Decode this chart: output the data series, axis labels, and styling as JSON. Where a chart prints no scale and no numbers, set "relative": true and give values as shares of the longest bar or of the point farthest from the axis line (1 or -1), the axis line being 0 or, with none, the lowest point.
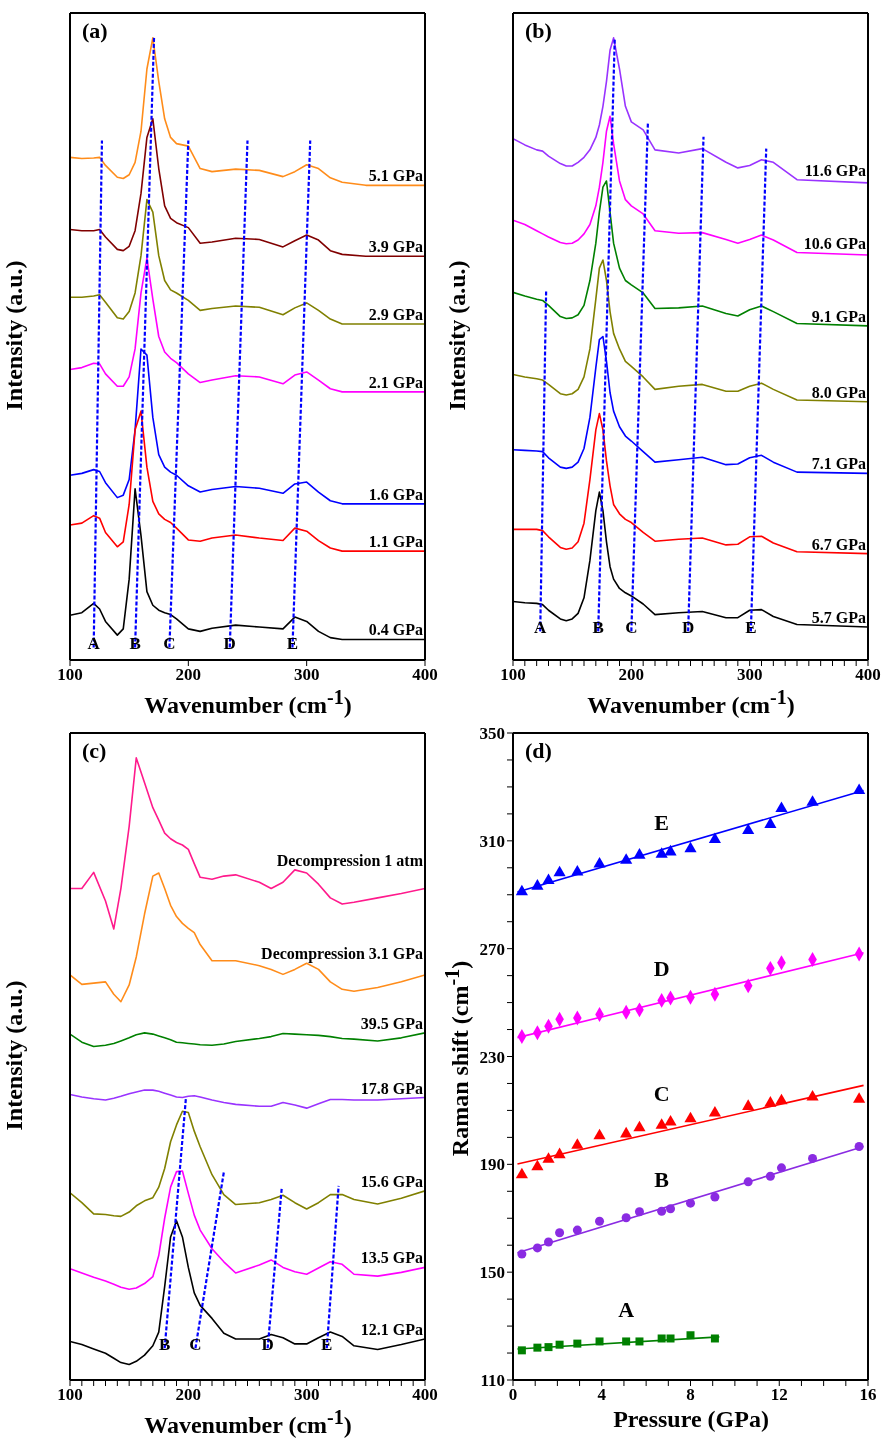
{
  "chart_data": [
    {
      "type": "line",
      "relative": true,
      "marker": "none",
      "title": "(a)",
      "xlabel": "Wavenumber (cm$^{-1}$)",
      "ylabel": "Intensity (a.u.)",
      "xlim": [
        100,
        400
      ],
      "xticks": [
        100,
        200,
        300,
        400
      ],
      "x": [
        100,
        110,
        120,
        125,
        130,
        140,
        145,
        150,
        155,
        160,
        165,
        170,
        175,
        180,
        185,
        190,
        200,
        210,
        220,
        240,
        260,
        280,
        290,
        300,
        310,
        320,
        330,
        350,
        400
      ],
      "series": [
        {
          "name": "5.1 GPa",
          "color": "#ff8c1a",
          "values": [
            0.808,
            0.806,
            0.807,
            0.808,
            0.795,
            0.776,
            0.774,
            0.78,
            0.8,
            0.85,
            0.95,
            1.0,
            0.93,
            0.87,
            0.84,
            0.83,
            0.826,
            0.79,
            0.785,
            0.789,
            0.787,
            0.777,
            0.785,
            0.796,
            0.79,
            0.775,
            0.768,
            0.763,
            0.763
          ]
        },
        {
          "name": "3.9 GPa",
          "color": "#800000",
          "values": [
            0.692,
            0.69,
            0.69,
            0.692,
            0.68,
            0.66,
            0.658,
            0.665,
            0.69,
            0.75,
            0.84,
            0.87,
            0.79,
            0.73,
            0.71,
            0.703,
            0.695,
            0.67,
            0.672,
            0.678,
            0.676,
            0.664,
            0.674,
            0.683,
            0.675,
            0.658,
            0.652,
            0.649,
            0.649
          ]
        },
        {
          "name": "2.9 GPa",
          "color": "#808000",
          "values": [
            0.583,
            0.583,
            0.585,
            0.587,
            0.575,
            0.55,
            0.548,
            0.56,
            0.59,
            0.65,
            0.74,
            0.72,
            0.65,
            0.61,
            0.595,
            0.59,
            0.578,
            0.562,
            0.565,
            0.569,
            0.567,
            0.555,
            0.566,
            0.574,
            0.562,
            0.548,
            0.54,
            0.54,
            0.54
          ]
        },
        {
          "name": "2.1 GPa",
          "color": "#ff00ff",
          "values": [
            0.467,
            0.47,
            0.477,
            0.476,
            0.46,
            0.44,
            0.44,
            0.455,
            0.5,
            0.59,
            0.646,
            0.58,
            0.52,
            0.495,
            0.485,
            0.478,
            0.46,
            0.446,
            0.45,
            0.457,
            0.455,
            0.444,
            0.458,
            0.463,
            0.45,
            0.436,
            0.431,
            0.431,
            0.431
          ]
        },
        {
          "name": "1.6 GPa",
          "color": "#0000ff",
          "values": [
            0.297,
            0.3,
            0.306,
            0.303,
            0.285,
            0.261,
            0.265,
            0.29,
            0.37,
            0.5,
            0.49,
            0.39,
            0.33,
            0.31,
            0.302,
            0.297,
            0.28,
            0.27,
            0.274,
            0.279,
            0.276,
            0.268,
            0.283,
            0.286,
            0.27,
            0.256,
            0.251,
            0.251,
            0.251
          ]
        },
        {
          "name": "1.1 GPa",
          "color": "#ff0000",
          "values": [
            0.217,
            0.22,
            0.232,
            0.228,
            0.205,
            0.182,
            0.19,
            0.25,
            0.37,
            0.4,
            0.31,
            0.255,
            0.235,
            0.226,
            0.221,
            0.212,
            0.193,
            0.191,
            0.196,
            0.201,
            0.196,
            0.192,
            0.212,
            0.207,
            0.192,
            0.18,
            0.175,
            0.175,
            0.175
          ]
        },
        {
          "name": "0.4 GPa",
          "color": "#000000",
          "values": [
            0.072,
            0.076,
            0.091,
            0.082,
            0.062,
            0.04,
            0.05,
            0.13,
            0.275,
            0.2,
            0.11,
            0.088,
            0.08,
            0.076,
            0.073,
            0.066,
            0.05,
            0.046,
            0.051,
            0.056,
            0.053,
            0.05,
            0.069,
            0.062,
            0.046,
            0.036,
            0.033,
            0.033,
            0.033
          ]
        },
        {
          "type": "line",
          "color": "#0000ff",
          "line_style": "dashed",
          "x": [
            120,
            127
          ],
          "values": [
            0.02,
            0.835
          ]
        },
        {
          "type": "line",
          "color": "#0000ff",
          "line_style": "dashed",
          "x": [
            155,
            171
          ],
          "values": [
            0.02,
            1.0
          ]
        },
        {
          "type": "line",
          "color": "#0000ff",
          "line_style": "dashed",
          "x": [
            184,
            200
          ],
          "values": [
            0.02,
            0.835
          ]
        },
        {
          "type": "line",
          "color": "#0000ff",
          "line_style": "dashed",
          "x": [
            235,
            250
          ],
          "values": [
            0.02,
            0.835
          ]
        },
        {
          "type": "line",
          "color": "#0000ff",
          "line_style": "dashed",
          "x": [
            288,
            303
          ],
          "values": [
            0.02,
            0.835
          ]
        }
      ],
      "annotations": [
        {
          "text": "A",
          "x": 120,
          "y": 0.02
        },
        {
          "text": "B",
          "x": 155,
          "y": 0.02
        },
        {
          "text": "C",
          "x": 184,
          "y": 0.02
        },
        {
          "text": "D",
          "x": 235,
          "y": 0.02
        },
        {
          "text": "E",
          "x": 288,
          "y": 0.02
        }
      ]
    },
    {
      "type": "line",
      "relative": true,
      "marker": "none",
      "title": "(b)",
      "xlabel": "Wavenumber (cm$^{-1}$)",
      "ylabel": "Intensity (a.u.)",
      "xlim": [
        100,
        400
      ],
      "xticks": [
        100,
        {
          "value": 110,
          "label": null
        },
        {
          "value": 120,
          "label": null
        },
        {
          "value": 130,
          "label": null
        },
        {
          "value": 140,
          "label": null
        },
        {
          "value": 150,
          "label": null
        },
        {
          "value": 160,
          "label": null
        },
        {
          "value": 170,
          "label": null
        },
        {
          "value": 180,
          "label": null
        },
        {
          "value": 190,
          "label": null
        },
        200,
        {
          "value": 210,
          "label": null
        },
        {
          "value": 220,
          "label": null
        },
        {
          "value": 230,
          "label": null
        },
        {
          "value": 240,
          "label": null
        },
        {
          "value": 250,
          "label": null
        },
        {
          "value": 260,
          "label": null
        },
        {
          "value": 270,
          "label": null
        },
        {
          "value": 280,
          "label": null
        },
        {
          "value": 290,
          "label": null
        },
        300,
        {
          "value": 310,
          "label": null
        },
        {
          "value": 320,
          "label": null
        },
        {
          "value": 330,
          "label": null
        },
        {
          "value": 340,
          "label": null
        },
        {
          "value": 350,
          "label": null
        },
        {
          "value": 360,
          "label": null
        },
        {
          "value": 370,
          "label": null
        },
        {
          "value": 380,
          "label": null
        },
        {
          "value": 390,
          "label": null
        },
        400
      ],
      "x": [
        100,
        110,
        120,
        125,
        130,
        140,
        145,
        150,
        155,
        160,
        165,
        170,
        173,
        176,
        179,
        182,
        185,
        190,
        195,
        200,
        210,
        220,
        240,
        260,
        280,
        290,
        300,
        310,
        320,
        340,
        400
      ],
      "series": [
        {
          "name": "11.6 GPa",
          "color": "#9933ff",
          "values": [
            0.838,
            0.828,
            0.82,
            0.818,
            0.81,
            0.798,
            0.794,
            0.794,
            0.8,
            0.808,
            0.82,
            0.84,
            0.86,
            0.89,
            0.93,
            0.98,
            1.0,
            0.95,
            0.89,
            0.865,
            0.852,
            0.82,
            0.815,
            0.822,
            0.8,
            0.791,
            0.795,
            0.804,
            0.8,
            0.772,
            0.767
          ]
        },
        {
          "name": "10.6 GPa",
          "color": "#ff00ff",
          "values": [
            0.707,
            0.7,
            0.69,
            0.685,
            0.68,
            0.671,
            0.669,
            0.67,
            0.675,
            0.685,
            0.7,
            0.73,
            0.76,
            0.8,
            0.85,
            0.874,
            0.83,
            0.77,
            0.74,
            0.73,
            0.717,
            0.69,
            0.686,
            0.687,
            0.676,
            0.67,
            0.676,
            0.683,
            0.675,
            0.655,
            0.651
          ]
        },
        {
          "name": "9.1 GPa",
          "color": "#008000",
          "values": [
            0.591,
            0.585,
            0.58,
            0.578,
            0.57,
            0.552,
            0.549,
            0.55,
            0.555,
            0.57,
            0.61,
            0.67,
            0.72,
            0.76,
            0.77,
            0.72,
            0.67,
            0.63,
            0.61,
            0.603,
            0.59,
            0.565,
            0.566,
            0.569,
            0.557,
            0.553,
            0.563,
            0.569,
            0.56,
            0.541,
            0.537
          ]
        },
        {
          "name": "8.0 GPa",
          "color": "#808000",
          "values": [
            0.459,
            0.455,
            0.452,
            0.45,
            0.443,
            0.428,
            0.426,
            0.428,
            0.435,
            0.455,
            0.5,
            0.58,
            0.63,
            0.643,
            0.61,
            0.56,
            0.525,
            0.5,
            0.48,
            0.472,
            0.455,
            0.435,
            0.44,
            0.443,
            0.432,
            0.432,
            0.44,
            0.445,
            0.435,
            0.418,
            0.415
          ]
        },
        {
          "name": "7.1 GPa",
          "color": "#0000ff",
          "values": [
            0.338,
            0.337,
            0.336,
            0.335,
            0.325,
            0.31,
            0.308,
            0.31,
            0.318,
            0.34,
            0.39,
            0.47,
            0.515,
            0.52,
            0.48,
            0.43,
            0.4,
            0.375,
            0.36,
            0.352,
            0.335,
            0.318,
            0.322,
            0.326,
            0.314,
            0.315,
            0.325,
            0.329,
            0.318,
            0.302,
            0.3
          ]
        },
        {
          "name": "6.7 GPa",
          "color": "#ff0000",
          "values": [
            0.21,
            0.21,
            0.21,
            0.208,
            0.198,
            0.181,
            0.178,
            0.18,
            0.19,
            0.22,
            0.29,
            0.37,
            0.396,
            0.37,
            0.32,
            0.28,
            0.25,
            0.235,
            0.226,
            0.221,
            0.205,
            0.191,
            0.194,
            0.196,
            0.185,
            0.186,
            0.198,
            0.199,
            0.188,
            0.174,
            0.171
          ]
        },
        {
          "name": "5.7 GPa",
          "color": "#000000",
          "values": [
            0.094,
            0.092,
            0.091,
            0.089,
            0.08,
            0.066,
            0.063,
            0.066,
            0.075,
            0.1,
            0.16,
            0.24,
            0.27,
            0.24,
            0.19,
            0.15,
            0.13,
            0.115,
            0.108,
            0.103,
            0.09,
            0.073,
            0.076,
            0.078,
            0.068,
            0.068,
            0.08,
            0.081,
            0.07,
            0.057,
            0.053
          ]
        },
        {
          "type": "line",
          "color": "#0000ff",
          "line_style": "dashed",
          "x": [
            123,
            128
          ],
          "values": [
            0.046,
            0.594
          ]
        },
        {
          "type": "line",
          "color": "#0000ff",
          "line_style": "dashed",
          "x": [
            172,
            186
          ],
          "values": [
            0.046,
            1.0
          ]
        },
        {
          "type": "line",
          "color": "#0000ff",
          "line_style": "dashed",
          "x": [
            200,
            214
          ],
          "values": [
            0.046,
            0.863
          ]
        },
        {
          "type": "line",
          "color": "#0000ff",
          "line_style": "dashed",
          "x": [
            248,
            261
          ],
          "values": [
            0.046,
            0.841
          ]
        },
        {
          "type": "line",
          "color": "#0000ff",
          "line_style": "dashed",
          "x": [
            301,
            314
          ],
          "values": [
            0.046,
            0.822
          ]
        }
      ],
      "annotations": [
        {
          "text": "A",
          "x": 123,
          "y": 0.046
        },
        {
          "text": "B",
          "x": 172,
          "y": 0.046
        },
        {
          "text": "C",
          "x": 200,
          "y": 0.046
        },
        {
          "text": "D",
          "x": 248,
          "y": 0.046
        },
        {
          "text": "E",
          "x": 301,
          "y": 0.046
        }
      ]
    },
    {
      "type": "line",
      "relative": true,
      "marker": "none",
      "title": "(c)",
      "xlabel": "Wavenumber (cm$^{-1}$)",
      "ylabel": "Intensity (a.u.)",
      "xlim": [
        100,
        400
      ],
      "xticks": [
        100,
        {
          "value": 110,
          "label": null
        },
        {
          "value": 120,
          "label": null
        },
        {
          "value": 130,
          "label": null
        },
        {
          "value": 140,
          "label": null
        },
        {
          "value": 150,
          "label": null
        },
        {
          "value": 160,
          "label": null
        },
        {
          "value": 170,
          "label": null
        },
        {
          "value": 180,
          "label": null
        },
        {
          "value": 190,
          "label": null
        },
        200,
        {
          "value": 210,
          "label": null
        },
        {
          "value": 220,
          "label": null
        },
        {
          "value": 230,
          "label": null
        },
        {
          "value": 240,
          "label": null
        },
        {
          "value": 250,
          "label": null
        },
        {
          "value": 260,
          "label": null
        },
        {
          "value": 270,
          "label": null
        },
        {
          "value": 280,
          "label": null
        },
        {
          "value": 290,
          "label": null
        },
        300,
        {
          "value": 310,
          "label": null
        },
        {
          "value": 320,
          "label": null
        },
        {
          "value": 330,
          "label": null
        },
        {
          "value": 340,
          "label": null
        },
        {
          "value": 350,
          "label": null
        },
        {
          "value": 360,
          "label": null
        },
        {
          "value": 370,
          "label": null
        },
        {
          "value": 380,
          "label": null
        },
        {
          "value": 390,
          "label": null
        },
        400
      ],
      "x": [
        100,
        110,
        120,
        130,
        137,
        143,
        150,
        156,
        163,
        170,
        175,
        180,
        185,
        190,
        195,
        200,
        205,
        210,
        220,
        230,
        240,
        260,
        270,
        280,
        290,
        300,
        310,
        320,
        330,
        340,
        360,
        380,
        400
      ],
      "series": [
        {
          "name": "Decompression 1 atm",
          "color": "#ff1a8c",
          "values": [
            0.79,
            0.79,
            0.816,
            0.77,
            0.725,
            0.79,
            0.89,
            1.0,
            0.96,
            0.92,
            0.9,
            0.879,
            0.87,
            0.864,
            0.86,
            0.853,
            0.83,
            0.808,
            0.805,
            0.81,
            0.812,
            0.8,
            0.79,
            0.8,
            0.82,
            0.815,
            0.797,
            0.775,
            0.765,
            0.768,
            0.775,
            0.782,
            0.79
          ]
        },
        {
          "name": "Decompression 3.1 GPa",
          "color": "#ff8c1a",
          "values": [
            0.651,
            0.636,
            0.638,
            0.64,
            0.62,
            0.608,
            0.635,
            0.68,
            0.749,
            0.81,
            0.815,
            0.79,
            0.763,
            0.745,
            0.734,
            0.726,
            0.719,
            0.7,
            0.674,
            0.674,
            0.674,
            0.666,
            0.66,
            0.652,
            0.66,
            0.67,
            0.66,
            0.64,
            0.628,
            0.625,
            0.631,
            0.64,
            0.651
          ]
        },
        {
          "name": "39.5 GPa",
          "color": "#008000",
          "values": [
            0.556,
            0.543,
            0.536,
            0.538,
            0.541,
            0.545,
            0.55,
            0.555,
            0.558,
            0.556,
            0.553,
            0.55,
            0.547,
            0.543,
            0.542,
            0.541,
            0.54,
            0.539,
            0.538,
            0.54,
            0.544,
            0.549,
            0.552,
            0.557,
            0.556,
            0.555,
            0.554,
            0.552,
            0.549,
            0.548,
            0.545,
            0.55,
            0.558
          ]
        },
        {
          "name": "17.8 GPa",
          "color": "#9933ff",
          "values": [
            0.459,
            0.455,
            0.452,
            0.45,
            0.453,
            0.456,
            0.46,
            0.463,
            0.466,
            0.466,
            0.464,
            0.461,
            0.458,
            0.455,
            0.454,
            0.456,
            0.457,
            0.455,
            0.45,
            0.446,
            0.443,
            0.44,
            0.44,
            0.446,
            0.442,
            0.437,
            0.444,
            0.451,
            0.451,
            0.45,
            0.45,
            0.452,
            0.454
          ]
        },
        {
          "name": "15.6 GPa",
          "color": "#808000",
          "values": [
            0.301,
            0.285,
            0.267,
            0.266,
            0.264,
            0.263,
            0.27,
            0.28,
            0.288,
            0.293,
            0.31,
            0.34,
            0.383,
            0.41,
            0.432,
            0.43,
            0.4,
            0.375,
            0.33,
            0.298,
            0.282,
            0.285,
            0.29,
            0.297,
            0.285,
            0.275,
            0.285,
            0.298,
            0.298,
            0.29,
            0.283,
            0.292,
            0.304
          ]
        },
        {
          "name": "13.5 GPa",
          "color": "#ff00ff",
          "values": [
            0.179,
            0.172,
            0.165,
            0.159,
            0.154,
            0.149,
            0.146,
            0.148,
            0.155,
            0.166,
            0.2,
            0.26,
            0.31,
            0.335,
            0.336,
            0.3,
            0.265,
            0.241,
            0.211,
            0.19,
            0.172,
            0.185,
            0.193,
            0.181,
            0.174,
            0.17,
            0.18,
            0.19,
            0.186,
            0.17,
            0.167,
            0.173,
            0.181
          ]
        },
        {
          "name": "12.1 GPa",
          "color": "#000000",
          "values": [
            0.062,
            0.057,
            0.05,
            0.043,
            0.035,
            0.028,
            0.025,
            0.03,
            0.04,
            0.055,
            0.077,
            0.15,
            0.23,
            0.256,
            0.23,
            0.181,
            0.14,
            0.12,
            0.099,
            0.075,
            0.066,
            0.066,
            0.073,
            0.068,
            0.058,
            0.058,
            0.068,
            0.077,
            0.07,
            0.055,
            0.049,
            0.057,
            0.066
          ]
        },
        {
          "type": "line",
          "color": "#0000ff",
          "line_style": "dashed",
          "x": [
            180,
            198
          ],
          "values": [
            0.051,
            0.454
          ]
        },
        {
          "type": "line",
          "color": "#0000ff",
          "line_style": "dashed",
          "x": [
            206,
            230
          ],
          "values": [
            0.051,
            0.334
          ]
        },
        {
          "type": "line",
          "color": "#0000ff",
          "line_style": "dashed",
          "x": [
            267,
            279
          ],
          "values": [
            0.051,
            0.31
          ]
        },
        {
          "type": "line",
          "color": "#0000ff",
          "line_style": "dashed",
          "x": [
            317,
            327
          ],
          "values": [
            0.051,
            0.312
          ]
        }
      ],
      "annotations": [
        {
          "text": "B",
          "x": 180,
          "y": 0.051
        },
        {
          "text": "C",
          "x": 206,
          "y": 0.051
        },
        {
          "text": "D",
          "x": 267,
          "y": 0.051
        },
        {
          "text": "E",
          "x": 317,
          "y": 0.051
        }
      ]
    },
    {
      "type": "scatter",
      "title": "(d)",
      "xlabel": "Pressure (GPa)",
      "ylabel": "Raman shift (cm$^{-1}$)",
      "xlim": [
        0,
        16
      ],
      "ylim": [
        110,
        350
      ],
      "xticks": [
        0,
        {
          "value": 1,
          "label": null
        },
        {
          "value": 2,
          "label": null
        },
        {
          "value": 3,
          "label": null
        },
        4,
        {
          "value": 5,
          "label": null
        },
        {
          "value": 6,
          "label": null
        },
        {
          "value": 7,
          "label": null
        },
        8,
        {
          "value": 9,
          "label": null
        },
        {
          "value": 10,
          "label": null
        },
        {
          "value": 11,
          "label": null
        },
        12,
        {
          "value": 13,
          "label": null
        },
        {
          "value": 14,
          "label": null
        },
        {
          "value": 15,
          "label": null
        },
        16
      ],
      "yticks": [
        110,
        {
          "value": 120,
          "label": null
        },
        {
          "value": 130,
          "label": null
        },
        {
          "value": 140,
          "label": null
        },
        150,
        {
          "value": 160,
          "label": null
        },
        {
          "value": 170,
          "label": null
        },
        {
          "value": 180,
          "label": null
        },
        190,
        {
          "value": 200,
          "label": null
        },
        {
          "value": 210,
          "label": null
        },
        {
          "value": 220,
          "label": null
        },
        230,
        {
          "value": 240,
          "label": null
        },
        {
          "value": 250,
          "label": null
        },
        {
          "value": 260,
          "label": null
        },
        270,
        {
          "value": 280,
          "label": null
        },
        {
          "value": 290,
          "label": null
        },
        {
          "value": 300,
          "label": null
        },
        310,
        {
          "value": 320,
          "label": null
        },
        {
          "value": 330,
          "label": null
        },
        {
          "value": 340,
          "label": null
        },
        350
      ],
      "x": [
        0.4,
        1.1,
        1.6,
        2.1,
        2.9,
        3.9,
        5.1,
        5.7,
        6.7,
        7.1,
        8.0,
        9.1,
        10.6,
        11.6,
        12.1,
        13.5,
        15.6
      ],
      "series": [
        {
          "name": "E",
          "color": "#0000ff",
          "marker": "triangle",
          "values": [
            291.1,
            293.2,
            295.3,
            298.2,
            298.4,
            301.4,
            302.8,
            304.7,
            305.0,
            305.9,
            307.1,
            310.5,
            313.8,
            316.1,
            322.0,
            324.3,
            328.7
          ]
        },
        {
          "name": "D",
          "color": "#ff00ff",
          "marker": "diamond",
          "values": [
            237.4,
            238.8,
            241.2,
            243.8,
            244.3,
            245.6,
            246.4,
            247.3,
            250.8,
            251.7,
            252.0,
            253.1,
            256.2,
            262.7,
            264.8,
            266.0,
            268.0
          ]
        },
        {
          "name": "C",
          "color": "#ff0000",
          "marker": "triangle",
          "values": [
            186.1,
            189.1,
            191.9,
            193.6,
            197.1,
            200.6,
            201.3,
            203.6,
            204.5,
            205.7,
            206.9,
            209.0,
            211.5,
            212.7,
            213.6,
            215.0,
            214.1
          ]
        },
        {
          "name": "B",
          "color": "#8a2be2",
          "marker": "circle",
          "values": [
            156.7,
            159.0,
            161.2,
            164.6,
            165.6,
            168.9,
            170.2,
            172.4,
            172.6,
            173.5,
            175.6,
            177.9,
            183.5,
            185.6,
            188.7,
            192.2,
            196.6
          ]
        },
        {
          "name": "A",
          "color": "#008000",
          "marker": "square",
          "x": [
            0.4,
            1.1,
            1.6,
            2.1,
            2.9,
            3.9,
            5.1,
            5.7,
            6.7,
            7.1,
            8.0,
            9.1
          ],
          "values": [
            121.0,
            122.0,
            122.2,
            123.1,
            123.5,
            124.3,
            124.3,
            124.3,
            125.4,
            125.4,
            126.6,
            125.4
          ]
        },
        {
          "type": "line",
          "color": "#0000ff",
          "marker": "none",
          "x": [
            0.2,
            15.8
          ],
          "values": [
            291,
            328.7
          ]
        },
        {
          "type": "line",
          "color": "#ff00ff",
          "marker": "none",
          "x": [
            0.2,
            15.8
          ],
          "values": [
            237,
            268.5
          ]
        },
        {
          "type": "line",
          "color": "#ff0000",
          "marker": "none",
          "x": [
            0.2,
            15.8
          ],
          "values": [
            190.1,
            219.3
          ]
        },
        {
          "type": "line",
          "color": "#8a2be2",
          "marker": "none",
          "x": [
            0.2,
            15.8
          ],
          "values": [
            157.2,
            196.6
          ]
        },
        {
          "type": "line",
          "color": "#008000",
          "marker": "none",
          "x": [
            0.2,
            9.3
          ],
          "values": [
            121.5,
            126.0
          ]
        }
      ]
    }
  ]
}
